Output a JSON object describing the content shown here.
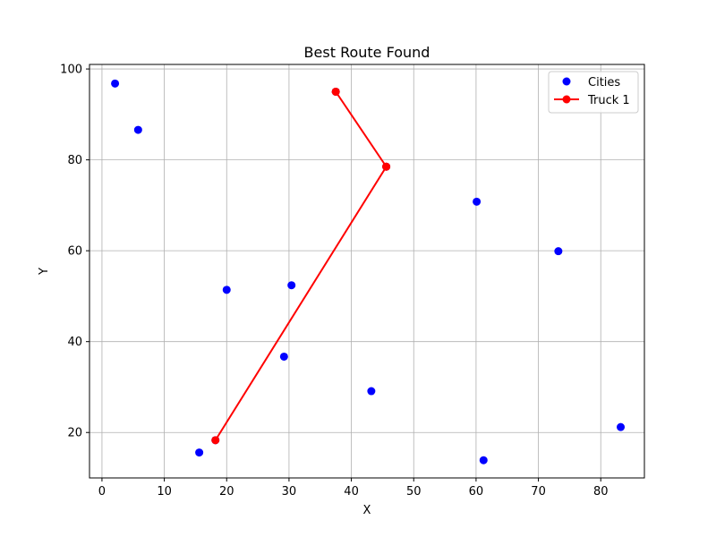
{
  "chart_data": {
    "type": "scatter",
    "title": "Best Route Found",
    "xlabel": "X",
    "ylabel": "Y",
    "xlim": [
      -2,
      87
    ],
    "ylim": [
      10,
      101
    ],
    "xticks": [
      0,
      10,
      20,
      30,
      40,
      50,
      60,
      70,
      80
    ],
    "yticks": [
      20,
      40,
      60,
      80,
      100
    ],
    "grid": true,
    "legend_position": "top-right",
    "series": [
      {
        "name": "Cities",
        "kind": "scatter",
        "color": "#0000ff",
        "points": [
          {
            "x": 2.1,
            "y": 96.8
          },
          {
            "x": 5.8,
            "y": 86.6
          },
          {
            "x": 15.6,
            "y": 15.6
          },
          {
            "x": 18.2,
            "y": 18.3
          },
          {
            "x": 20.0,
            "y": 51.4
          },
          {
            "x": 29.2,
            "y": 36.7
          },
          {
            "x": 30.4,
            "y": 52.4
          },
          {
            "x": 37.5,
            "y": 95.0
          },
          {
            "x": 43.2,
            "y": 29.1
          },
          {
            "x": 45.6,
            "y": 78.5
          },
          {
            "x": 60.1,
            "y": 70.8
          },
          {
            "x": 61.2,
            "y": 13.9
          },
          {
            "x": 73.2,
            "y": 59.9
          },
          {
            "x": 83.2,
            "y": 21.2
          }
        ]
      },
      {
        "name": "Truck 1",
        "kind": "line",
        "color": "#ff0000",
        "points": [
          {
            "x": 37.5,
            "y": 95.0
          },
          {
            "x": 45.6,
            "y": 78.5
          },
          {
            "x": 18.2,
            "y": 18.3
          },
          {
            "x": 45.6,
            "y": 78.5
          },
          {
            "x": 37.5,
            "y": 95.0
          }
        ]
      }
    ]
  }
}
